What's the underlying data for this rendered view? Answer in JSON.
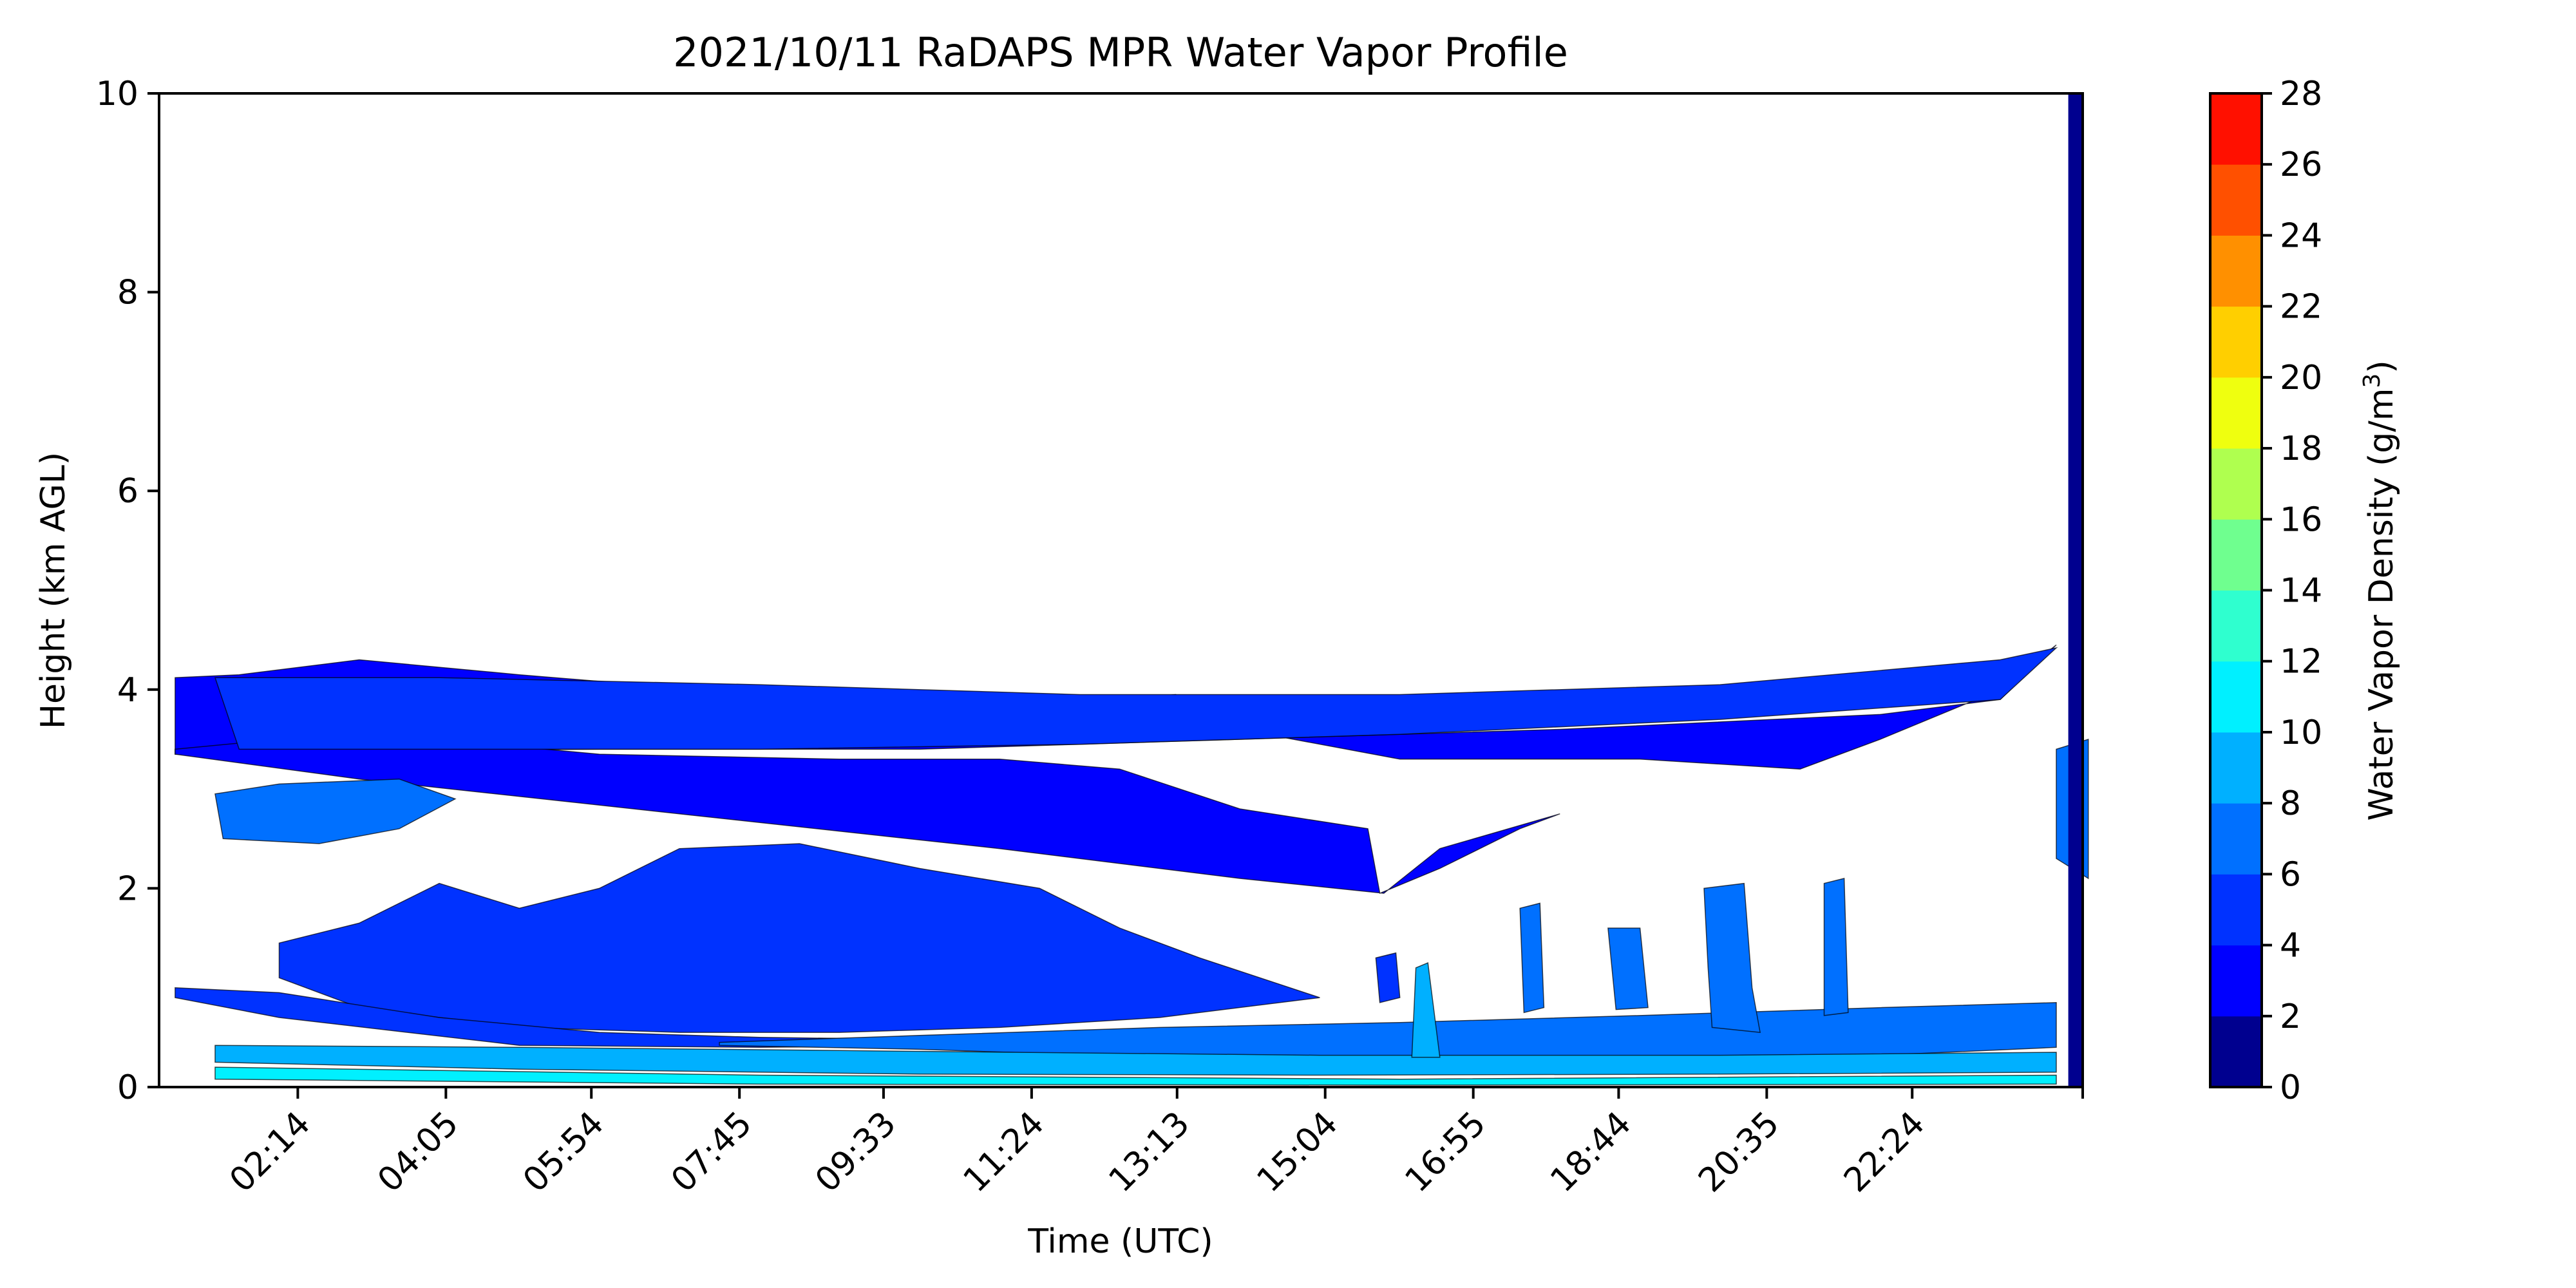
{
  "chart_data": {
    "type": "filled-contour",
    "title": "2021/10/11 RaDAPS MPR Water Vapor Profile",
    "xlabel": "Time (UTC)",
    "ylabel": "Height (km AGL)",
    "ylim": [
      0,
      10
    ],
    "yticks": [
      "0",
      "2",
      "4",
      "6",
      "8",
      "10"
    ],
    "xticks": [
      "02:14",
      "04:05",
      "05:54",
      "07:45",
      "09:33",
      "11:24",
      "13:13",
      "15:04",
      "16:55",
      "18:44",
      "20:35",
      "22:24"
    ],
    "xtick_hours": [
      2.233,
      4.083,
      5.9,
      7.75,
      9.55,
      11.4,
      13.217,
      15.067,
      16.917,
      18.733,
      20.583,
      22.4
    ],
    "xlim_hours": [
      0.5,
      24.53
    ],
    "grid": false,
    "colorbar": {
      "label": "Water Vapor Density (g/m³)",
      "label_main": "Water Vapor Density (g/m",
      "label_sup": "3",
      "label_close": ")",
      "levels": [
        0,
        2,
        4,
        6,
        8,
        10,
        12,
        14,
        16,
        18,
        20,
        22,
        24,
        26,
        28
      ],
      "level_labels": [
        "0",
        "2",
        "4",
        "6",
        "8",
        "10",
        "12",
        "14",
        "16",
        "18",
        "20",
        "22",
        "24",
        "26",
        "28"
      ],
      "colors": [
        "#00008f",
        "#0000ff",
        "#0032ff",
        "#0070ff",
        "#00b0ff",
        "#00f0ff",
        "#2fffcf",
        "#6fff8f",
        "#afff4f",
        "#efff0f",
        "#ffcf00",
        "#ff9000",
        "#ff5000",
        "#ff1000",
        "#a00000"
      ]
    },
    "bands": [
      {
        "level": "2-4",
        "poly": [
          [
            0.7,
            4.12
          ],
          [
            1.5,
            4.15
          ],
          [
            3,
            4.3
          ],
          [
            5,
            4.15
          ],
          [
            8,
            3.95
          ],
          [
            10,
            3.7
          ],
          [
            13.2,
            3.95
          ],
          [
            14,
            3.6
          ],
          [
            16,
            3.3
          ],
          [
            19,
            3.3
          ],
          [
            21,
            3.2
          ],
          [
            22,
            3.5
          ],
          [
            23.5,
            4.0
          ],
          [
            24.2,
            4.45
          ],
          [
            23.5,
            3.9
          ],
          [
            22,
            3.75
          ],
          [
            18,
            3.6
          ],
          [
            14,
            3.5
          ],
          [
            10,
            3.4
          ],
          [
            6,
            3.4
          ],
          [
            2,
            3.38
          ],
          [
            0.7,
            3.35
          ]
        ]
      },
      {
        "level": "2-4",
        "poly": [
          [
            0.7,
            3.4
          ],
          [
            2,
            3.5
          ],
          [
            3,
            3.65
          ],
          [
            4,
            3.5
          ],
          [
            6,
            3.35
          ],
          [
            9,
            3.3
          ],
          [
            11,
            3.3
          ],
          [
            12.5,
            3.2
          ],
          [
            14,
            2.8
          ],
          [
            15.6,
            2.6
          ],
          [
            15.75,
            1.95
          ],
          [
            16.5,
            2.2
          ],
          [
            17.5,
            2.6
          ],
          [
            18,
            2.75
          ],
          [
            16.5,
            2.4
          ],
          [
            15.8,
            1.95
          ],
          [
            14,
            2.1
          ],
          [
            11,
            2.4
          ],
          [
            7,
            2.75
          ],
          [
            3,
            3.1
          ],
          [
            0.7,
            3.35
          ]
        ]
      },
      {
        "level": "4-6",
        "poly": [
          [
            1.2,
            4.12
          ],
          [
            4,
            4.12
          ],
          [
            8,
            4.05
          ],
          [
            12,
            3.95
          ],
          [
            16,
            3.95
          ],
          [
            20,
            4.05
          ],
          [
            23.5,
            4.3
          ],
          [
            24.2,
            4.42
          ],
          [
            23.5,
            3.9
          ],
          [
            20,
            3.7
          ],
          [
            16,
            3.55
          ],
          [
            12,
            3.45
          ],
          [
            8,
            3.4
          ],
          [
            4,
            3.4
          ],
          [
            1.5,
            3.4
          ]
        ]
      },
      {
        "level": "4-6",
        "poly": [
          [
            2,
            1.45
          ],
          [
            3,
            1.65
          ],
          [
            4,
            2.05
          ],
          [
            5,
            1.8
          ],
          [
            6,
            2.0
          ],
          [
            7,
            2.4
          ],
          [
            8.5,
            2.45
          ],
          [
            10,
            2.2
          ],
          [
            11.5,
            2.0
          ],
          [
            12.5,
            1.6
          ],
          [
            13.5,
            1.3
          ],
          [
            15,
            0.9
          ],
          [
            13,
            0.7
          ],
          [
            11,
            0.6
          ],
          [
            9,
            0.55
          ],
          [
            7,
            0.55
          ],
          [
            5,
            0.6
          ],
          [
            3,
            0.8
          ],
          [
            2,
            1.1
          ]
        ]
      },
      {
        "level": "4-6",
        "poly": [
          [
            0.7,
            1.0
          ],
          [
            2,
            0.95
          ],
          [
            4,
            0.7
          ],
          [
            6,
            0.55
          ],
          [
            8,
            0.5
          ],
          [
            10,
            0.48
          ],
          [
            12,
            0.48
          ],
          [
            11,
            0.42
          ],
          [
            8,
            0.4
          ],
          [
            5,
            0.42
          ],
          [
            2,
            0.7
          ],
          [
            0.7,
            0.9
          ]
        ]
      },
      {
        "level": "4-6",
        "poly": [
          [
            15.7,
            1.3
          ],
          [
            15.95,
            1.35
          ],
          [
            16.0,
            0.9
          ],
          [
            15.75,
            0.85
          ]
        ]
      },
      {
        "level": "6-8",
        "poly": [
          [
            1.2,
            2.95
          ],
          [
            2,
            3.05
          ],
          [
            3.5,
            3.1
          ],
          [
            4.2,
            2.9
          ],
          [
            3.5,
            2.6
          ],
          [
            2.5,
            2.45
          ],
          [
            1.3,
            2.5
          ]
        ]
      },
      {
        "level": "6-8",
        "poly": [
          [
            7.5,
            0.45
          ],
          [
            10,
            0.52
          ],
          [
            13,
            0.6
          ],
          [
            16,
            0.65
          ],
          [
            19,
            0.72
          ],
          [
            22,
            0.8
          ],
          [
            24.2,
            0.85
          ],
          [
            24.2,
            0.4
          ],
          [
            22,
            0.32
          ],
          [
            19,
            0.3
          ],
          [
            16,
            0.28
          ],
          [
            13,
            0.3
          ],
          [
            10,
            0.38
          ],
          [
            7.5,
            0.42
          ]
        ]
      },
      {
        "level": "6-8",
        "poly": [
          [
            17.5,
            1.8
          ],
          [
            17.75,
            1.85
          ],
          [
            17.8,
            0.8
          ],
          [
            17.55,
            0.75
          ]
        ]
      },
      {
        "level": "6-8",
        "poly": [
          [
            19.8,
            2.0
          ],
          [
            20.3,
            2.05
          ],
          [
            20.4,
            1.0
          ],
          [
            20.5,
            0.55
          ],
          [
            19.9,
            0.6
          ],
          [
            19.85,
            1.2
          ]
        ]
      },
      {
        "level": "6-8",
        "poly": [
          [
            21.3,
            2.05
          ],
          [
            21.55,
            2.1
          ],
          [
            21.6,
            0.75
          ],
          [
            21.3,
            0.72
          ]
        ]
      },
      {
        "level": "6-8",
        "poly": [
          [
            18.6,
            1.6
          ],
          [
            19.0,
            1.6
          ],
          [
            19.1,
            0.8
          ],
          [
            18.7,
            0.78
          ]
        ]
      },
      {
        "level": "6-8",
        "poly": [
          [
            24.2,
            3.4
          ],
          [
            24.6,
            3.5
          ],
          [
            24.6,
            2.1
          ],
          [
            24.2,
            2.3
          ]
        ]
      },
      {
        "level": "8-10",
        "poly": [
          [
            1.2,
            0.42
          ],
          [
            5,
            0.4
          ],
          [
            10,
            0.36
          ],
          [
            15,
            0.32
          ],
          [
            20,
            0.32
          ],
          [
            24.2,
            0.35
          ],
          [
            24.2,
            0.15
          ],
          [
            20,
            0.13
          ],
          [
            15,
            0.12
          ],
          [
            10,
            0.13
          ],
          [
            5,
            0.18
          ],
          [
            1.2,
            0.25
          ]
        ]
      },
      {
        "level": "8-10",
        "poly": [
          [
            16.2,
            1.2
          ],
          [
            16.35,
            1.25
          ],
          [
            16.5,
            0.3
          ],
          [
            16.15,
            0.3
          ]
        ]
      },
      {
        "level": "10-12",
        "poly": [
          [
            1.2,
            0.2
          ],
          [
            8,
            0.12
          ],
          [
            16,
            0.08
          ],
          [
            24.2,
            0.12
          ],
          [
            24.2,
            0.03
          ],
          [
            16,
            0.02
          ],
          [
            8,
            0.03
          ],
          [
            1.2,
            0.08
          ]
        ]
      }
    ],
    "right_strip": {
      "x_hours": [
        24.35,
        24.53
      ],
      "level": "0-2",
      "ymin": 0,
      "ymax": 10
    }
  }
}
